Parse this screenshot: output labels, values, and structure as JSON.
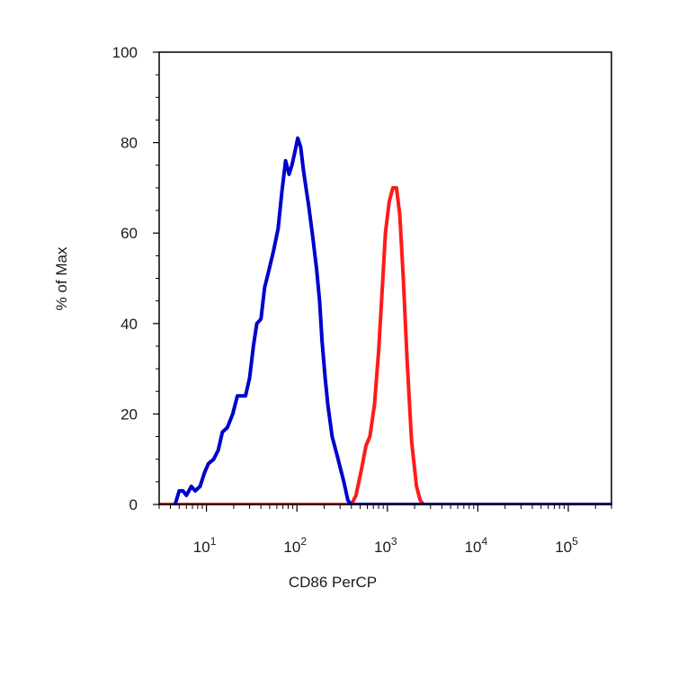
{
  "chart_data": {
    "type": "line",
    "title": "",
    "xlabel": "CD86 PerCP",
    "ylabel": "% of Max",
    "x_scale": "log",
    "xlim": [
      3,
      300000
    ],
    "ylim": [
      0,
      100
    ],
    "grid": false,
    "legend": "none",
    "y_ticks": [
      0,
      20,
      40,
      60,
      80,
      100
    ],
    "x_ticks": [
      {
        "value": 10,
        "base": "10",
        "exp": "1"
      },
      {
        "value": 100,
        "base": "10",
        "exp": "2"
      },
      {
        "value": 1000,
        "base": "10",
        "exp": "3"
      },
      {
        "value": 10000,
        "base": "10",
        "exp": "4"
      },
      {
        "value": 100000,
        "base": "10",
        "exp": "5"
      }
    ],
    "series": [
      {
        "color": "#ff1a1a",
        "points": [
          [
            3,
            0
          ],
          [
            400,
            0
          ],
          [
            450,
            2
          ],
          [
            520,
            8
          ],
          [
            580,
            13
          ],
          [
            640,
            15
          ],
          [
            720,
            22
          ],
          [
            800,
            34
          ],
          [
            880,
            48
          ],
          [
            950,
            60
          ],
          [
            1050,
            67
          ],
          [
            1150,
            70
          ],
          [
            1260,
            70
          ],
          [
            1370,
            64
          ],
          [
            1500,
            50
          ],
          [
            1650,
            32
          ],
          [
            1850,
            14
          ],
          [
            2100,
            4
          ],
          [
            2300,
            1
          ],
          [
            2500,
            0
          ]
        ]
      },
      {
        "color": "#0000cc",
        "points": [
          [
            4.5,
            0
          ],
          [
            5,
            3
          ],
          [
            5.5,
            3
          ],
          [
            6,
            2
          ],
          [
            6.8,
            4
          ],
          [
            7.5,
            3
          ],
          [
            8.5,
            4
          ],
          [
            9.5,
            7
          ],
          [
            10.5,
            9
          ],
          [
            12,
            10
          ],
          [
            13.5,
            12
          ],
          [
            15,
            16
          ],
          [
            17,
            17
          ],
          [
            19.5,
            20
          ],
          [
            22,
            24
          ],
          [
            24.5,
            24
          ],
          [
            27,
            24
          ],
          [
            30,
            28
          ],
          [
            33,
            35
          ],
          [
            36,
            40
          ],
          [
            40,
            41
          ],
          [
            44,
            48
          ],
          [
            48,
            51
          ],
          [
            55,
            56
          ],
          [
            62,
            61
          ],
          [
            68,
            69
          ],
          [
            75,
            76
          ],
          [
            82,
            73
          ],
          [
            88,
            75
          ],
          [
            95,
            78
          ],
          [
            102,
            81
          ],
          [
            110,
            79
          ],
          [
            118,
            74
          ],
          [
            126,
            70
          ],
          [
            135,
            66
          ],
          [
            150,
            59
          ],
          [
            165,
            52
          ],
          [
            178,
            45
          ],
          [
            190,
            36
          ],
          [
            205,
            28
          ],
          [
            220,
            22
          ],
          [
            245,
            15
          ],
          [
            285,
            10
          ],
          [
            330,
            5
          ],
          [
            365,
            1
          ],
          [
            390,
            0
          ],
          [
            300000,
            0
          ]
        ]
      }
    ]
  }
}
